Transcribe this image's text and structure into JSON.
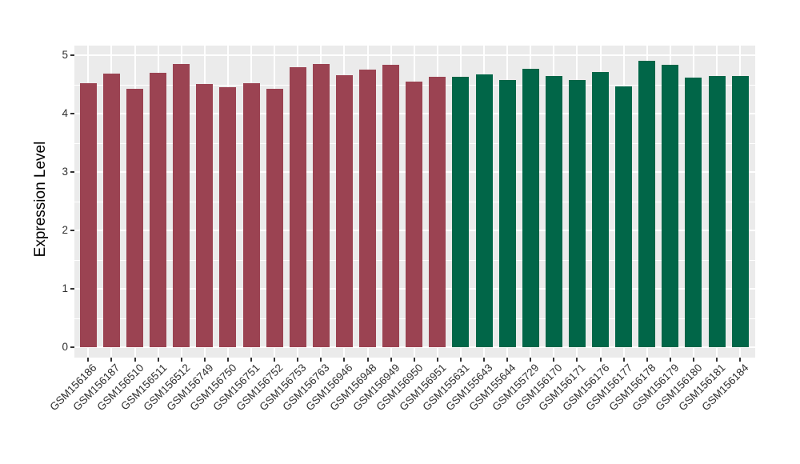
{
  "chart_data": {
    "type": "bar",
    "title": "",
    "xlabel": "",
    "ylabel": "Expression Level",
    "ylim": [
      -0.18,
      5.16
    ],
    "yticks": [
      0,
      1,
      2,
      3,
      4,
      5
    ],
    "yticks_minor": [
      0.5,
      1.5,
      2.5,
      3.5,
      4.5
    ],
    "grid": "on",
    "legend": "none",
    "panel_background": "#ebebeb",
    "grid_color": "#ffffff",
    "tick_color": "#333333",
    "axis_text_color": "#303030",
    "palette": {
      "maroon": "#9b4352",
      "green": "#016648"
    },
    "bars": [
      {
        "label": "GSM156186",
        "value": 4.52,
        "group": "maroon"
      },
      {
        "label": "GSM156187",
        "value": 4.68,
        "group": "maroon"
      },
      {
        "label": "GSM156510",
        "value": 4.43,
        "group": "maroon"
      },
      {
        "label": "GSM156511",
        "value": 4.7,
        "group": "maroon"
      },
      {
        "label": "GSM156512",
        "value": 4.85,
        "group": "maroon"
      },
      {
        "label": "GSM156749",
        "value": 4.51,
        "group": "maroon"
      },
      {
        "label": "GSM156750",
        "value": 4.45,
        "group": "maroon"
      },
      {
        "label": "GSM156751",
        "value": 4.52,
        "group": "maroon"
      },
      {
        "label": "GSM156752",
        "value": 4.42,
        "group": "maroon"
      },
      {
        "label": "GSM156753",
        "value": 4.8,
        "group": "maroon"
      },
      {
        "label": "GSM156763",
        "value": 4.85,
        "group": "maroon"
      },
      {
        "label": "GSM156946",
        "value": 4.66,
        "group": "maroon"
      },
      {
        "label": "GSM156948",
        "value": 4.75,
        "group": "maroon"
      },
      {
        "label": "GSM156949",
        "value": 4.83,
        "group": "maroon"
      },
      {
        "label": "GSM156950",
        "value": 4.55,
        "group": "maroon"
      },
      {
        "label": "GSM156951",
        "value": 4.63,
        "group": "maroon"
      },
      {
        "label": "GSM155631",
        "value": 4.63,
        "group": "green"
      },
      {
        "label": "GSM155643",
        "value": 4.67,
        "group": "green"
      },
      {
        "label": "GSM155644",
        "value": 4.57,
        "group": "green"
      },
      {
        "label": "GSM155729",
        "value": 4.77,
        "group": "green"
      },
      {
        "label": "GSM156170",
        "value": 4.65,
        "group": "green"
      },
      {
        "label": "GSM156171",
        "value": 4.57,
        "group": "green"
      },
      {
        "label": "GSM156176",
        "value": 4.71,
        "group": "green"
      },
      {
        "label": "GSM156177",
        "value": 4.47,
        "group": "green"
      },
      {
        "label": "GSM156178",
        "value": 4.91,
        "group": "green"
      },
      {
        "label": "GSM156179",
        "value": 4.84,
        "group": "green"
      },
      {
        "label": "GSM156180",
        "value": 4.62,
        "group": "green"
      },
      {
        "label": "GSM156181",
        "value": 4.64,
        "group": "green"
      },
      {
        "label": "GSM156184",
        "value": 4.64,
        "group": "green"
      }
    ]
  }
}
